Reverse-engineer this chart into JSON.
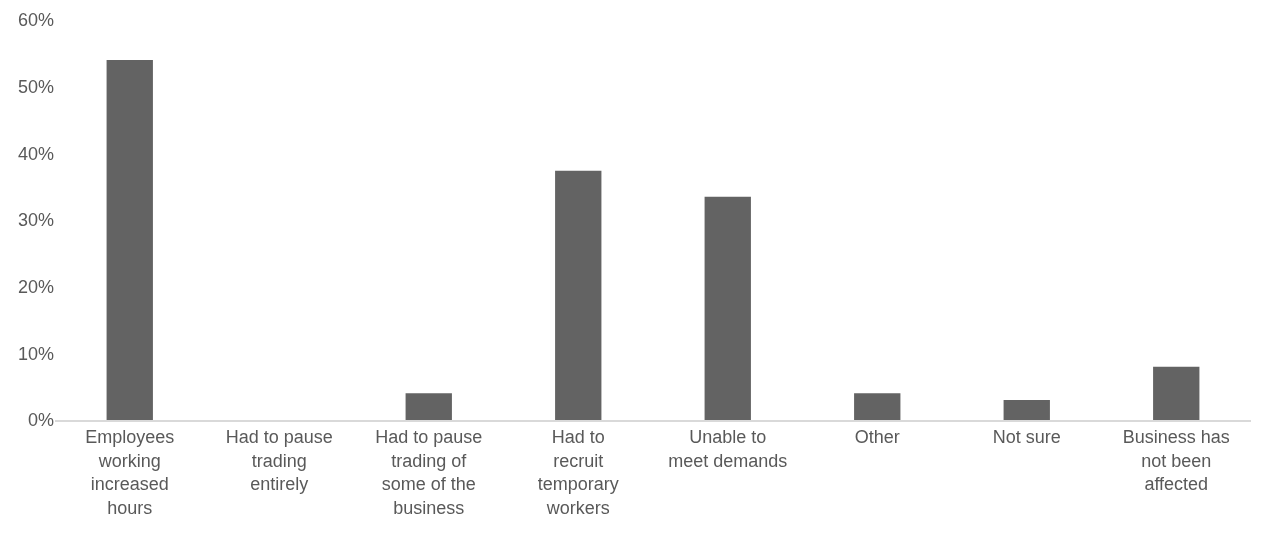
{
  "chart_data": {
    "type": "bar",
    "categories": [
      "Employees working increased hours",
      "Had to pause trading entirely",
      "Had to pause trading of some of the business",
      "Had to recruit temporary workers",
      "Unable to meet demands",
      "Other",
      "Not sure",
      "Business has not been affected"
    ],
    "values": [
      54,
      0,
      4,
      37.4,
      33.5,
      4,
      3,
      8
    ],
    "color": "#636363",
    "ylim": [
      0,
      60
    ],
    "yticks": [
      {
        "value": 0,
        "label": "0%"
      },
      {
        "value": 10,
        "label": "10%"
      },
      {
        "value": 20,
        "label": "20%"
      },
      {
        "value": 30,
        "label": "30%"
      },
      {
        "value": 40,
        "label": "40%"
      },
      {
        "value": 50,
        "label": "50%"
      },
      {
        "value": 60,
        "label": "60%"
      }
    ],
    "grid": false
  }
}
